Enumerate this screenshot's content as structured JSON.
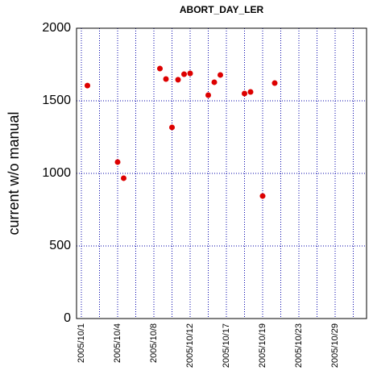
{
  "chart_data": {
    "type": "scatter",
    "title": "ABORT_DAY_LER",
    "ylabel": "current w/o manual",
    "x": [
      1,
      6,
      7,
      13,
      14,
      15,
      16,
      17,
      18,
      21,
      22,
      23,
      27,
      28,
      30,
      32
    ],
    "values": [
      1605,
      1078,
      967,
      1722,
      1650,
      1317,
      1645,
      1683,
      1689,
      1539,
      1628,
      1678,
      1550,
      1561,
      844,
      1622
    ],
    "color": "#dd0000",
    "xlim": [
      -0.8,
      47.2
    ],
    "xticks": [
      {
        "value": 0,
        "label": "2005/10/1"
      },
      {
        "value": 6,
        "label": "2005/10/4"
      },
      {
        "value": 12,
        "label": "2005/10/8"
      },
      {
        "value": 18,
        "label": "2005/10/12"
      },
      {
        "value": 24,
        "label": "2005/10/17"
      },
      {
        "value": 30,
        "label": "2005/10/19"
      },
      {
        "value": 36,
        "label": "2005/10/23"
      },
      {
        "value": 42,
        "label": "2005/10/29"
      }
    ],
    "ylim": [
      0,
      2000
    ],
    "yticks": [
      0,
      500,
      1000,
      1500,
      2000
    ],
    "grid": true,
    "minor_x_grid": true
  }
}
